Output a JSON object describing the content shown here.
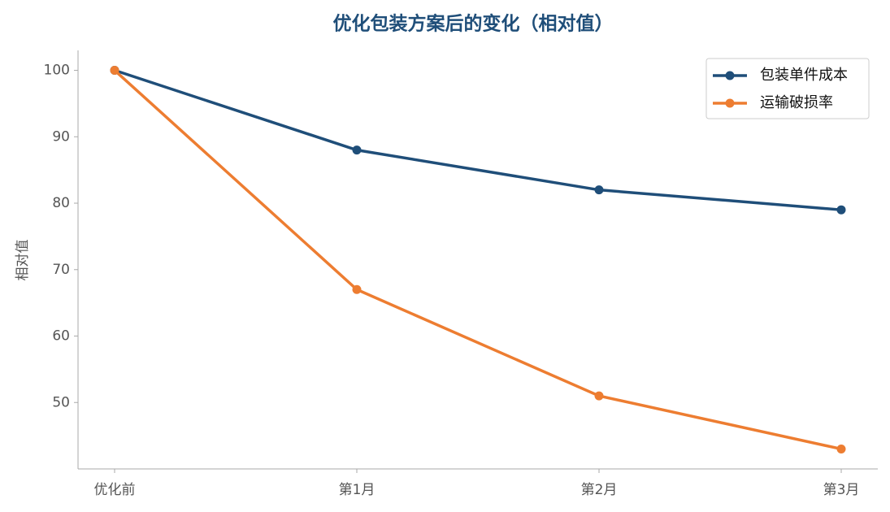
{
  "chart_data": {
    "type": "line",
    "title": "优化包装方案后的变化（相对值）",
    "y_label": "相对值",
    "categories": [
      "优化前",
      "第1月",
      "第2月",
      "第3月"
    ],
    "series": [
      {
        "name": "包装单件成本",
        "color": "#1f4e79",
        "values": [
          100,
          88,
          82,
          79
        ]
      },
      {
        "name": "运输破损率",
        "color": "#ed7d31",
        "values": [
          100,
          67,
          51,
          43
        ]
      }
    ],
    "ylim": [
      40,
      103
    ],
    "yticks": [
      50,
      60,
      70,
      80,
      90,
      100
    ],
    "grid": false,
    "legend": "upper right"
  }
}
